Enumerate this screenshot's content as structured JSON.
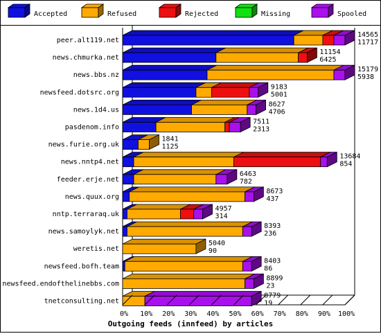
{
  "chart_data": {
    "type": "bar",
    "orientation": "horizontal",
    "stacked": true,
    "percent_stacked": true,
    "title": "",
    "xlabel": "Outgoing feeds (innfeed) by articles",
    "ylabel": "",
    "xlim": [
      0,
      100
    ],
    "x_ticks": [
      "0%",
      "10%",
      "20%",
      "30%",
      "40%",
      "50%",
      "60%",
      "70%",
      "80%",
      "90%",
      "100%"
    ],
    "legend_position": "top",
    "grid": false,
    "series": [
      {
        "name": "Accepted",
        "color": "#1010e0"
      },
      {
        "name": "Refused",
        "color": "#ffaa00"
      },
      {
        "name": "Rejected",
        "color": "#ee1010"
      },
      {
        "name": "Missing",
        "color": "#10e010"
      },
      {
        "name": "Spooled",
        "color": "#aa10ee"
      }
    ],
    "categories": [
      "peer.alt119.net",
      "news.chmurka.net",
      "news.bbs.nz",
      "newsfeed.dotsrc.org",
      "news.1d4.us",
      "pasdenom.info",
      "news.furie.org.uk",
      "news.nntp4.net",
      "feeder.erje.net",
      "news.quux.org",
      "nntp.terraraq.uk",
      "news.samoylyk.net",
      "weretis.net",
      "newsfeed.bofh.team",
      "newsfeed.endofthelinebbs.com",
      "tnetconsulting.net"
    ],
    "percent_values": [
      [
        77,
        13,
        5,
        0,
        5
      ],
      [
        42,
        37,
        4,
        0,
        0
      ],
      [
        38,
        57,
        0,
        0,
        5
      ],
      [
        33,
        7,
        17,
        0,
        4
      ],
      [
        31,
        25,
        0,
        0,
        4
      ],
      [
        15,
        31,
        2,
        0,
        5
      ],
      [
        7,
        5,
        0,
        0,
        0
      ],
      [
        5,
        45,
        39,
        0,
        3
      ],
      [
        5,
        37,
        0,
        0,
        5
      ],
      [
        3,
        52,
        0,
        0,
        4
      ],
      [
        2,
        24,
        6,
        0,
        4
      ],
      [
        2,
        52,
        0,
        0,
        4
      ],
      [
        0,
        33,
        0,
        0,
        0
      ],
      [
        1,
        53,
        0,
        0,
        4
      ],
      [
        0,
        55,
        0,
        0,
        4
      ],
      [
        0,
        10,
        0,
        0,
        48
      ]
    ],
    "totals": [
      14565,
      11154,
      15179,
      9183,
      8627,
      7511,
      1841,
      13684,
      6463,
      8673,
      4957,
      8393,
      5040,
      8403,
      8899,
      8779
    ],
    "accepted": [
      11717,
      6425,
      5938,
      5001,
      4706,
      2313,
      1125,
      854,
      782,
      437,
      314,
      236,
      90,
      86,
      23,
      19
    ]
  }
}
